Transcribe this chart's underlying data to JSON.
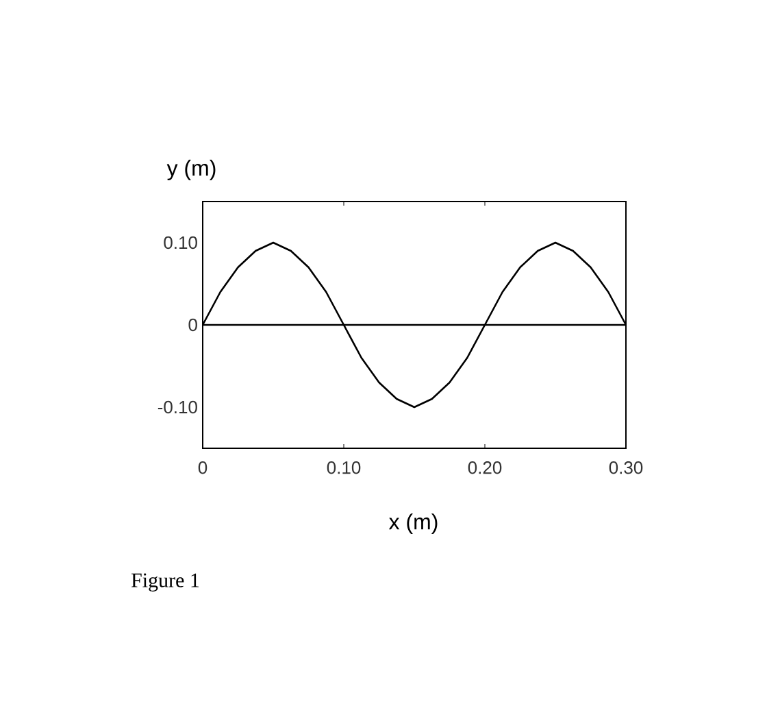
{
  "chart_data": {
    "type": "line",
    "xlabel": "x (m)",
    "ylabel": "y (m)",
    "x": [
      0,
      0.0125,
      0.025,
      0.0375,
      0.05,
      0.0625,
      0.075,
      0.0875,
      0.1,
      0.1125,
      0.125,
      0.1375,
      0.15,
      0.1625,
      0.175,
      0.1875,
      0.2,
      0.2125,
      0.225,
      0.2375,
      0.25,
      0.2625,
      0.275,
      0.2875,
      0.3
    ],
    "series": [
      {
        "color": "#000000",
        "values": [
          0,
          0.04,
          0.07,
          0.09,
          0.1,
          0.09,
          0.07,
          0.04,
          0,
          -0.04,
          -0.07,
          -0.09,
          -0.1,
          -0.09,
          -0.07,
          -0.04,
          0,
          0.04,
          0.07,
          0.09,
          0.1,
          0.09,
          0.07,
          0.04,
          0
        ]
      }
    ],
    "xlim": [
      0,
      0.3
    ],
    "ylim": [
      -0.15,
      0.15
    ],
    "xticks": [
      {
        "value": 0,
        "label": "0"
      },
      {
        "value": 0.1,
        "label": "0.10"
      },
      {
        "value": 0.2,
        "label": "0.20"
      },
      {
        "value": 0.3,
        "label": "0.30"
      }
    ],
    "yticks": [
      {
        "value": -0.1,
        "label": "-0.10"
      },
      0,
      {
        "value": 0.1,
        "label": "0.10"
      }
    ],
    "ref_lines": [
      {
        "axis": "y",
        "value": 0,
        "color": "#000000"
      }
    ],
    "annotations": [
      "Figure 1"
    ]
  }
}
